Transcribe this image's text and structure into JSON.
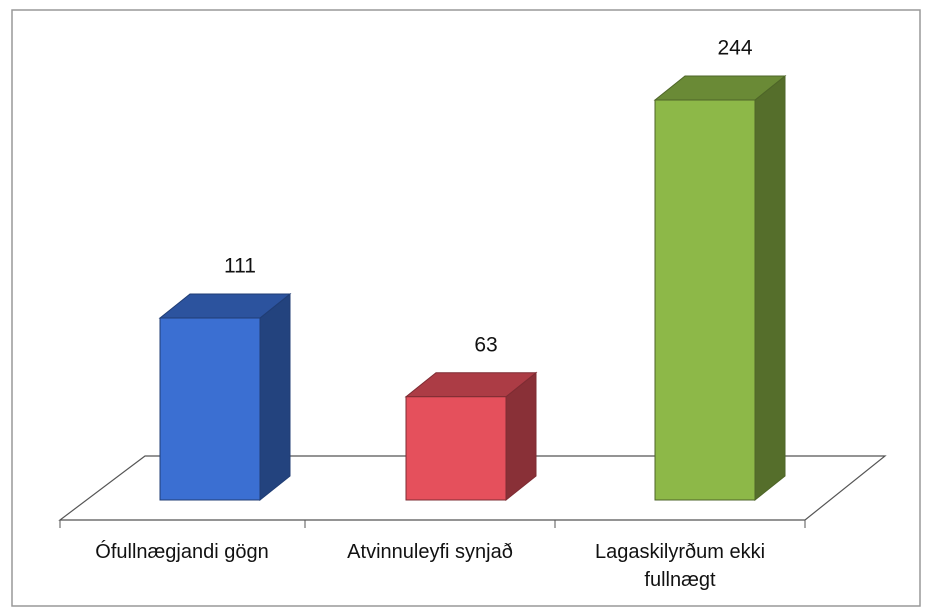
{
  "chart_data": {
    "type": "bar3d",
    "categories": [
      "Ófullnægjandi gögn",
      "Atvinnuleyfi synjað",
      "Lagaskilyrðum ekki fullnægt"
    ],
    "values": [
      111,
      63,
      244
    ],
    "colors": [
      "#3b6fd2",
      "#e5505c",
      "#8db848"
    ]
  }
}
